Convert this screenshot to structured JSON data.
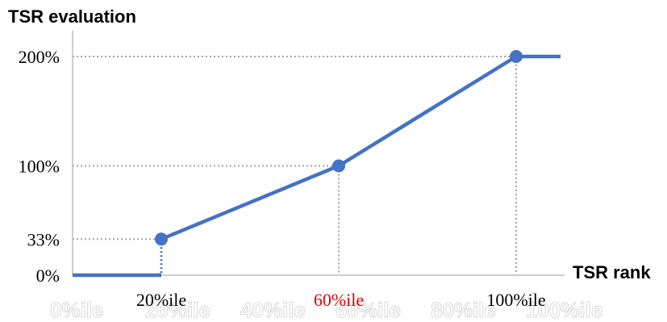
{
  "chart_data": {
    "type": "line",
    "title": "",
    "ylabel": "TSR evaluation",
    "xlabel": "TSR rank",
    "xlim": [
      0,
      112
    ],
    "ylim": [
      0,
      210
    ],
    "y_ticks": [
      {
        "value": 0,
        "label": "0%"
      },
      {
        "value": 33,
        "label": "33%"
      },
      {
        "value": 100,
        "label": "100%"
      },
      {
        "value": 200,
        "label": "200%"
      }
    ],
    "x_ticks": [
      {
        "value": 20,
        "label": "20%ile",
        "color": "#000000"
      },
      {
        "value": 60,
        "label": "60%ile",
        "color": "#e00000"
      },
      {
        "value": 100,
        "label": "100%ile",
        "color": "#000000"
      }
    ],
    "watermark_labels": [
      "0%ile",
      "20%ile",
      "40%ile",
      "60%ile",
      "80%ile",
      "100%ile"
    ],
    "series": [
      {
        "points": [
          {
            "x": 0,
            "y": 0
          },
          {
            "x": 20,
            "y": 0
          },
          {
            "x": 20,
            "y": 33
          },
          {
            "x": 60,
            "y": 100
          },
          {
            "x": 100,
            "y": 200
          },
          {
            "x": 110,
            "y": 200
          }
        ],
        "markers": [
          {
            "x": 20,
            "y": 33
          },
          {
            "x": 60,
            "y": 100
          },
          {
            "x": 100,
            "y": 200
          }
        ],
        "color": "#4472c4"
      }
    ],
    "grid": false,
    "legend": "none"
  }
}
